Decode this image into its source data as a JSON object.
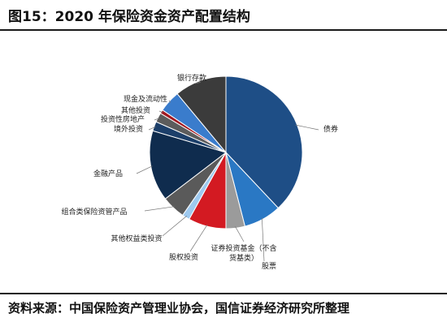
{
  "header": {
    "title": "图15：2020 年保险资金资产配置结构"
  },
  "footer": {
    "source": "资料来源：中国保险资产管理业协会，国信证券经济研究所整理"
  },
  "chart_data": {
    "type": "pie",
    "start_angle_deg": 0,
    "direction": "clockwise",
    "slices": [
      {
        "label": "债券",
        "value": 38,
        "color": "#1e4e86"
      },
      {
        "label": "股票",
        "value": 8,
        "color": "#2a78c4"
      },
      {
        "label": "证券投资基金（不含货基类）",
        "label_lines": [
          "证券投资基金（不含",
          "货基类）"
        ],
        "value": 4,
        "color": "#9b9b9b"
      },
      {
        "label": "股权投资",
        "value": 8,
        "color": "#d31a22"
      },
      {
        "label": "其他权益类投资",
        "value": 1.6,
        "color": "#9ec9ef"
      },
      {
        "label": "组合类保险资管产品",
        "value": 5,
        "color": "#5a5a5a"
      },
      {
        "label": "金融产品",
        "value": 15,
        "color": "#0f2c4e"
      },
      {
        "label": "境外投资",
        "value": 2,
        "color": "#1c3f6a"
      },
      {
        "label": "投资性房地产",
        "value": 2,
        "color": "#5c5c5c"
      },
      {
        "label": "其他投资",
        "value": 0.8,
        "color": "#a11820"
      },
      {
        "label": "现金及流动性",
        "value": 4.6,
        "color": "#3a7ccc"
      },
      {
        "label": "银行存款",
        "value": 11,
        "color": "#3b3b3b"
      }
    ]
  }
}
